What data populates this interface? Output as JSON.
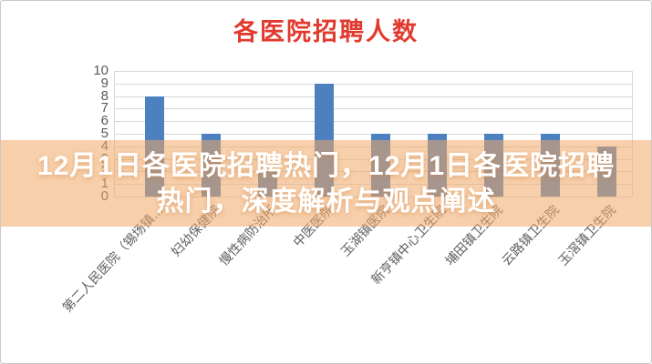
{
  "window": {
    "background_color": "#ffffff",
    "border_color": "#c9c9c9"
  },
  "chart_data": {
    "type": "bar",
    "title": "各医院招聘人数",
    "title_color": "#e23a2e",
    "categories": [
      "第二人民医院（锡场镇…",
      "妇幼保健院",
      "慢性病防治所",
      "中医医院",
      "玉湖镇医院",
      "新亨镇中心卫生院",
      "埔田镇卫生院",
      "云路镇卫生院",
      "玉滘镇卫生院"
    ],
    "values": [
      8,
      5,
      2,
      9,
      5,
      5,
      5,
      5,
      4
    ],
    "xlabel": "",
    "ylabel": "",
    "ylim": [
      0,
      10
    ],
    "yticks": [
      0,
      1,
      2,
      3,
      4,
      5,
      6,
      7,
      8,
      9,
      10
    ],
    "grid": true,
    "legend": "none",
    "bar_color": "#4d80bf",
    "gridline_color": "#d9d9d9",
    "axis_label_color": "#595959"
  },
  "banner": {
    "line1": "12月1日各医院招聘热门，12月1日各医院招聘",
    "line2": "热门，深度解析与观点阐述",
    "background_rgba": "rgba(241,168,102,0.55)",
    "text_color": "#ffffff"
  }
}
